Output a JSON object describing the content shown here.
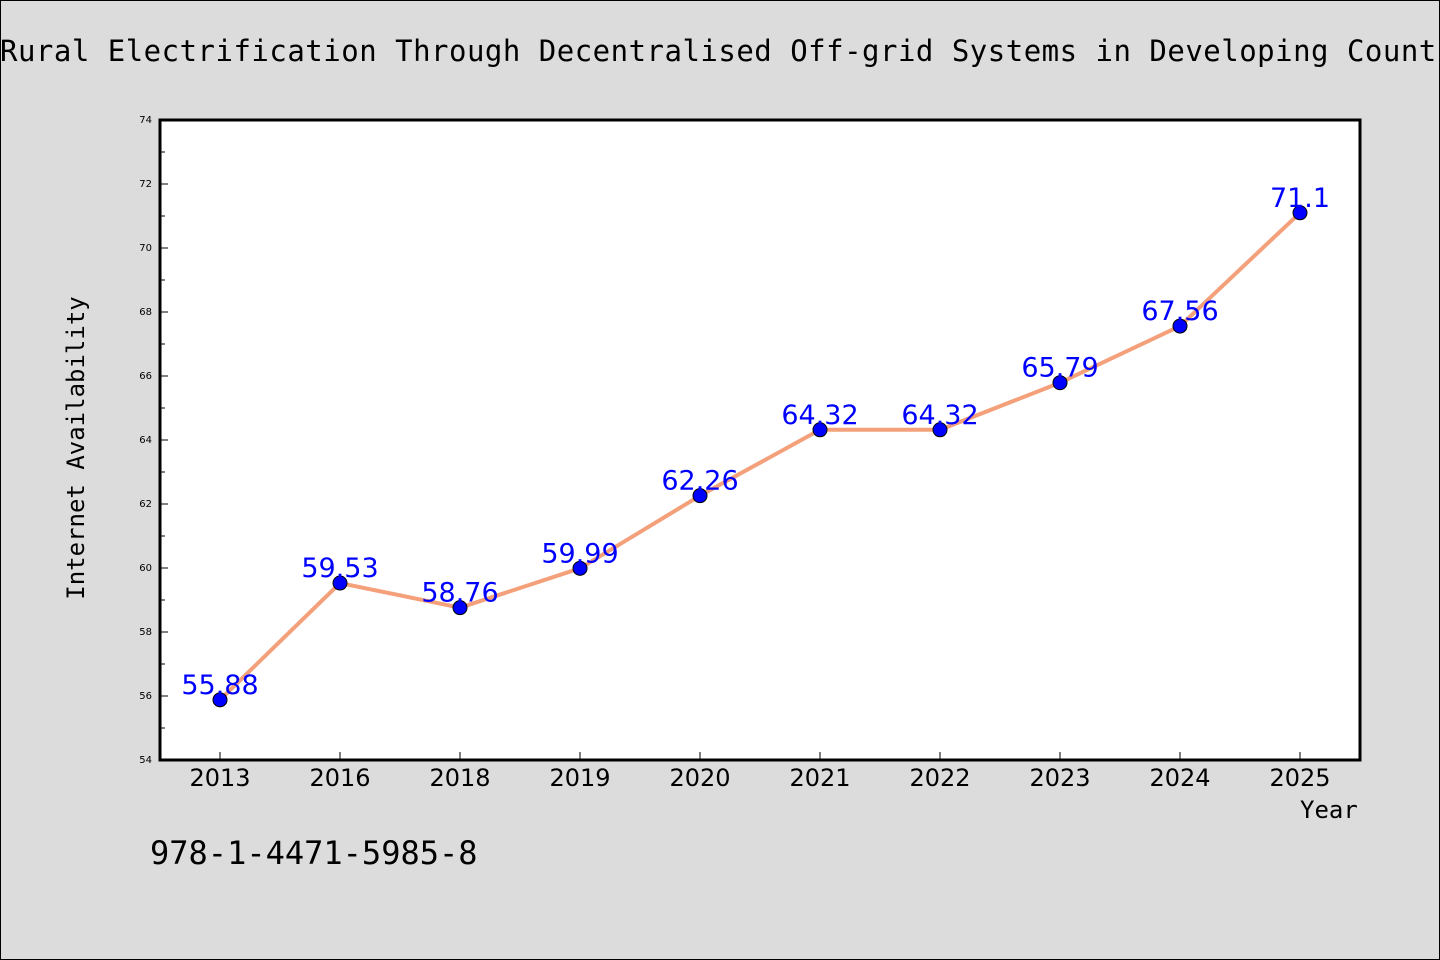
{
  "title": "Rural Electrification Through Decentralised Off-grid Systems in Developing Count",
  "footer_text": "978-1-4471-5985-8",
  "colors": {
    "background": "#dcdcdc",
    "plot_background": "#ffffff",
    "line": "#f4a07a",
    "marker": "#0000ff",
    "data_label": "#0000ff"
  },
  "chart_data": {
    "type": "line",
    "xlabel": "Year",
    "ylabel": "Internet Availability",
    "categories": [
      "2013",
      "2016",
      "2018",
      "2019",
      "2020",
      "2021",
      "2022",
      "2023",
      "2024",
      "2025"
    ],
    "series": [
      {
        "values": [
          55.88,
          59.53,
          58.76,
          59.99,
          62.26,
          64.32,
          64.32,
          65.79,
          67.56,
          71.1
        ],
        "labels": [
          "55.88",
          "59.53",
          "58.76",
          "59.99",
          "62.26",
          "64.32",
          "64.32",
          "65.79",
          "67.56",
          "71.1"
        ]
      }
    ],
    "ylim": [
      54,
      74
    ],
    "yticks": [
      "54",
      "56",
      "58",
      "60",
      "62",
      "64",
      "66",
      "68",
      "70",
      "72",
      "74"
    ],
    "grid": false,
    "legend": "none"
  }
}
